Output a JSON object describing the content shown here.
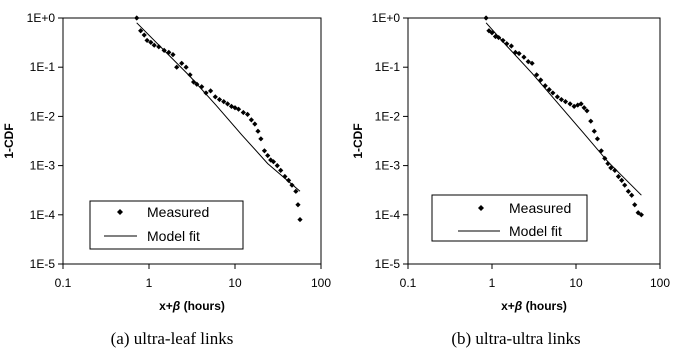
{
  "chart_data": [
    {
      "type": "scatter",
      "xscale": "log",
      "yscale": "log",
      "xlim": [
        0.1,
        100
      ],
      "ylim": [
        1e-05,
        1
      ],
      "xticks": [
        "0.1",
        "1",
        "10",
        "100"
      ],
      "yticks": [
        "1E-5",
        "1E-4",
        "1E-3",
        "1E-2",
        "1E-1",
        "1E+0"
      ],
      "xlabel_main": "x+",
      "xlabel_greek": "β",
      "xlabel_tail": " (hours)",
      "ylabel": "1-CDF",
      "legend_labels": [
        "Measured",
        "Model fit"
      ],
      "legend_position": "bottom-left",
      "caption": "(a) ultra-leaf links",
      "series": [
        {
          "name": "Measured",
          "kind": "points",
          "x": [
            0.72,
            0.8,
            0.88,
            0.95,
            1.05,
            1.15,
            1.3,
            1.5,
            1.7,
            1.9,
            2.1,
            2.4,
            2.7,
            3.0,
            3.3,
            3.6,
            4.1,
            4.6,
            5.2,
            5.9,
            6.6,
            7.4,
            8.2,
            9.1,
            10.0,
            11.0,
            12.5,
            14.0,
            15.5,
            17.0,
            18.5,
            20.0,
            22.0,
            24.0,
            26.0,
            28.0,
            31.0,
            34.0,
            38.0,
            42.0,
            46.0,
            51.0,
            54.0,
            57.0
          ],
          "y": [
            1.0,
            0.55,
            0.45,
            0.35,
            0.32,
            0.28,
            0.26,
            0.22,
            0.2,
            0.18,
            0.1,
            0.12,
            0.1,
            0.07,
            0.05,
            0.045,
            0.04,
            0.03,
            0.033,
            0.025,
            0.022,
            0.02,
            0.018,
            0.016,
            0.015,
            0.014,
            0.012,
            0.011,
            0.0085,
            0.007,
            0.005,
            0.0035,
            0.002,
            0.0016,
            0.0013,
            0.0012,
            0.001,
            0.0008,
            0.0006,
            0.0005,
            0.0004,
            0.0003,
            0.00016,
            8e-05
          ]
        },
        {
          "name": "Model fit",
          "kind": "line",
          "x": [
            0.72,
            1.5,
            3.0,
            6.0,
            12.0,
            24.0,
            57.0
          ],
          "y": [
            0.8,
            0.22,
            0.065,
            0.017,
            0.0042,
            0.0011,
            0.0003
          ]
        }
      ]
    },
    {
      "type": "scatter",
      "xscale": "log",
      "yscale": "log",
      "xlim": [
        0.1,
        100
      ],
      "ylim": [
        1e-05,
        1
      ],
      "xticks": [
        "0.1",
        "1",
        "10",
        "100"
      ],
      "yticks": [
        "1E-5",
        "1E-4",
        "1E-3",
        "1E-2",
        "1E-1",
        "1E+0"
      ],
      "xlabel_main": "x+",
      "xlabel_greek": "β",
      "xlabel_tail": " (hours)",
      "ylabel": "1-CDF",
      "legend_labels": [
        "Measured",
        "Model fit"
      ],
      "legend_position": "bottom-left",
      "caption": "(b) ultra-ultra links",
      "series": [
        {
          "name": "Measured",
          "kind": "points",
          "x": [
            0.85,
            0.92,
            1.0,
            1.1,
            1.2,
            1.35,
            1.5,
            1.7,
            1.9,
            2.1,
            2.4,
            2.7,
            3.0,
            3.4,
            3.8,
            4.3,
            4.8,
            5.3,
            6.0,
            6.7,
            7.5,
            8.5,
            9.5,
            10.5,
            11.5,
            12.5,
            13.5,
            15.0,
            16.5,
            18.0,
            20.0,
            22.0,
            24.0,
            26.0,
            29.0,
            32.0,
            35.0,
            38.0,
            42.0,
            46.0,
            50.0,
            55.0,
            60.0
          ],
          "y": [
            1.0,
            0.55,
            0.5,
            0.42,
            0.4,
            0.35,
            0.3,
            0.27,
            0.2,
            0.19,
            0.16,
            0.13,
            0.12,
            0.07,
            0.055,
            0.042,
            0.035,
            0.03,
            0.025,
            0.022,
            0.02,
            0.018,
            0.016,
            0.017,
            0.018,
            0.015,
            0.013,
            0.008,
            0.005,
            0.0035,
            0.002,
            0.0014,
            0.0011,
            0.0009,
            0.0008,
            0.0006,
            0.0005,
            0.0004,
            0.0003,
            0.00025,
            0.00016,
            0.00011,
            0.0001
          ]
        },
        {
          "name": "Model fit",
          "kind": "line",
          "x": [
            0.85,
            1.5,
            3.0,
            6.0,
            12.0,
            24.0,
            60.0
          ],
          "y": [
            0.8,
            0.27,
            0.075,
            0.019,
            0.0048,
            0.0012,
            0.00025
          ]
        }
      ]
    }
  ]
}
